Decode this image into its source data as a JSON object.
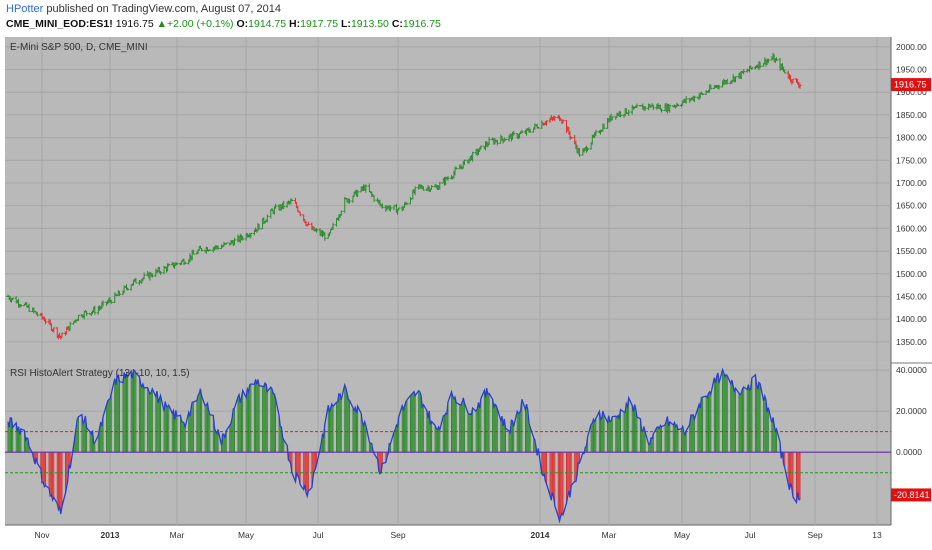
{
  "header": {
    "author": "HPotter",
    "published_text": "published on TradingView.com, August 07, 2014",
    "symbol": "CME_MINI_EOD:ES1!",
    "last": "1916.75",
    "change": "+2.00 (+0.1%)",
    "open_label": "O:",
    "open": "1914.75",
    "high_label": "H:",
    "high": "1917.75",
    "low_label": "L:",
    "low": "1913.50",
    "close_label": "C:",
    "close": "1916.75"
  },
  "colors": {
    "panel_bg": "#b9b9b9",
    "up": "#2e8b2e",
    "down": "#e03030",
    "rsi_line": "#2a3fd0",
    "upper_band": "#e02020",
    "lower_band": "#1a9a1a",
    "zero_line": "#6a2bb0",
    "axis_text": "#333333",
    "price_tag": "#e01010"
  },
  "chart_data": [
    {
      "type": "bar",
      "subtype": "ohlc",
      "title": "E-Mini S&P 500, D, CME_MINI",
      "x_ticks": [
        "Nov",
        "2013",
        "Mar",
        "May",
        "Jul",
        "Sep",
        "2014",
        "Mar",
        "May",
        "Jul",
        "Sep",
        "13"
      ],
      "ylim": [
        1310,
        2015
      ],
      "y_ticks": [
        1350,
        1400,
        1450,
        1500,
        1550,
        1600,
        1650,
        1700,
        1750,
        1800,
        1850,
        1900,
        1950,
        2000
      ],
      "y_tick_labels": [
        "1350.00",
        "1400.00",
        "1450.00",
        "1500.00",
        "1550.00",
        "1600.00",
        "1650.00",
        "1700.00",
        "1750.00",
        "1800.00",
        "1850.00",
        "1900.00",
        "1950.00",
        "2000.00"
      ],
      "last_value": "1916.75",
      "series": {
        "x": [
          "2012-10-01",
          "2012-10-15",
          "2012-11-01",
          "2012-11-15",
          "2012-12-01",
          "2012-12-15",
          "2013-01-01",
          "2013-01-15",
          "2013-02-01",
          "2013-02-15",
          "2013-03-01",
          "2013-03-15",
          "2013-04-01",
          "2013-04-15",
          "2013-05-01",
          "2013-05-15",
          "2013-06-01",
          "2013-06-15",
          "2013-07-01",
          "2013-07-15",
          "2013-08-01",
          "2013-08-15",
          "2013-09-01",
          "2013-09-15",
          "2013-10-01",
          "2013-10-15",
          "2013-11-01",
          "2013-11-15",
          "2013-12-01",
          "2013-12-15",
          "2014-01-01",
          "2014-01-15",
          "2014-02-01",
          "2014-02-15",
          "2014-03-01",
          "2014-03-15",
          "2014-04-01",
          "2014-04-15",
          "2014-05-01",
          "2014-05-15",
          "2014-06-01",
          "2014-06-15",
          "2014-07-01",
          "2014-07-15",
          "2014-08-01",
          "2014-08-07"
        ],
        "close": [
          1450,
          1430,
          1400,
          1360,
          1410,
          1420,
          1450,
          1480,
          1500,
          1515,
          1530,
          1555,
          1560,
          1575,
          1600,
          1640,
          1660,
          1600,
          1580,
          1660,
          1690,
          1650,
          1640,
          1690,
          1690,
          1720,
          1760,
          1790,
          1800,
          1810,
          1835,
          1845,
          1760,
          1810,
          1850,
          1860,
          1870,
          1865,
          1880,
          1895,
          1920,
          1935,
          1960,
          1975,
          1925,
          1917
        ]
      }
    },
    {
      "type": "histogram",
      "title": "RSI HistoAlert Strategy (13, -10, 10, 1.5)",
      "ylim": [
        -34,
        42
      ],
      "y_ticks": [
        40,
        20,
        0
      ],
      "y_tick_labels": [
        "40.0000",
        "20.0000",
        "0.0000"
      ],
      "bands": {
        "upper": 10,
        "lower": -10,
        "zero": 0
      },
      "last_value": "-20.8141",
      "series": {
        "x": [
          "2012-10-01",
          "2012-10-15",
          "2012-11-01",
          "2012-11-15",
          "2012-12-01",
          "2012-12-15",
          "2013-01-01",
          "2013-01-15",
          "2013-02-01",
          "2013-02-15",
          "2013-03-01",
          "2013-03-15",
          "2013-04-01",
          "2013-04-15",
          "2013-05-01",
          "2013-05-15",
          "2013-06-01",
          "2013-06-15",
          "2013-07-01",
          "2013-07-15",
          "2013-08-01",
          "2013-08-15",
          "2013-09-01",
          "2013-09-15",
          "2013-10-01",
          "2013-10-15",
          "2013-11-01",
          "2013-11-15",
          "2013-12-01",
          "2013-12-15",
          "2014-01-01",
          "2014-01-15",
          "2014-02-01",
          "2014-02-15",
          "2014-03-01",
          "2014-03-15",
          "2014-04-01",
          "2014-04-15",
          "2014-05-01",
          "2014-05-15",
          "2014-06-01",
          "2014-06-15",
          "2014-07-01",
          "2014-07-15",
          "2014-08-01",
          "2014-08-07"
        ],
        "values": [
          15,
          10,
          -15,
          -30,
          20,
          5,
          35,
          38,
          30,
          20,
          15,
          30,
          5,
          25,
          35,
          28,
          -10,
          -20,
          20,
          30,
          15,
          -10,
          20,
          30,
          10,
          28,
          20,
          30,
          10,
          25,
          -12,
          -32,
          -5,
          20,
          15,
          25,
          5,
          15,
          10,
          25,
          38,
          30,
          35,
          15,
          -22,
          -21
        ]
      }
    }
  ]
}
